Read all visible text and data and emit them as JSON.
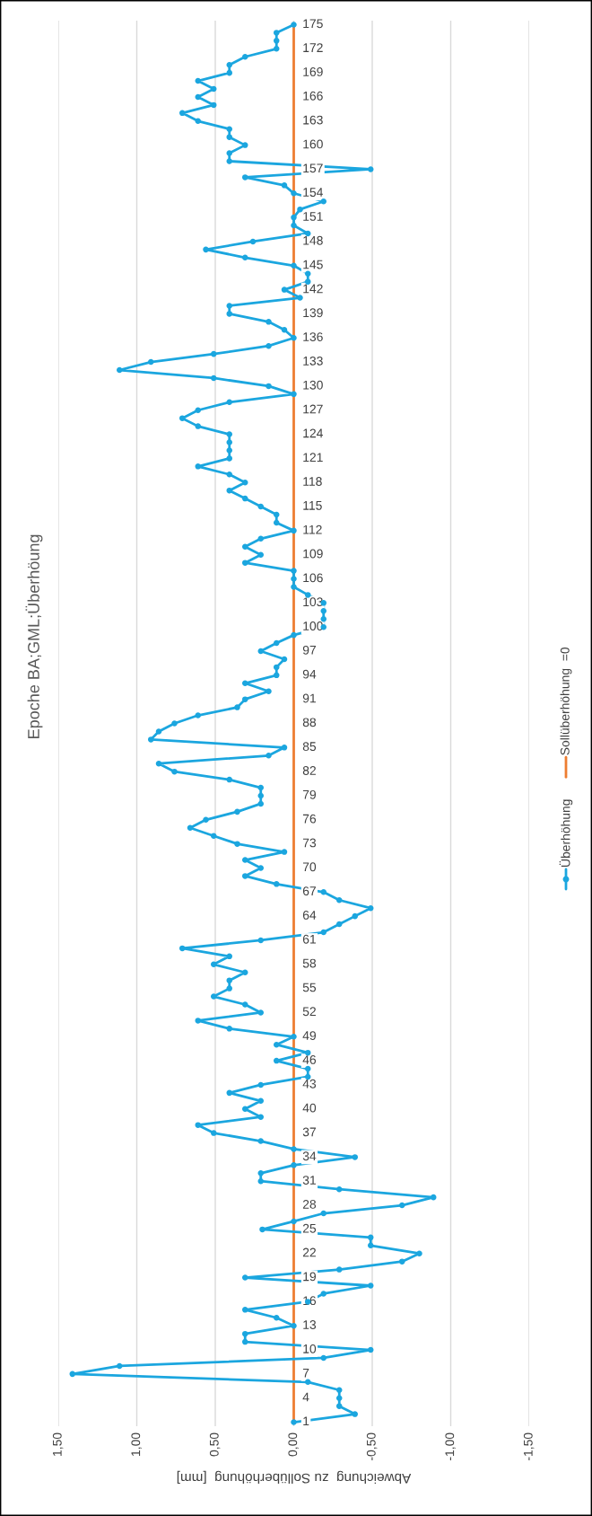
{
  "chart_data": {
    "type": "line",
    "orientation": "horizontal",
    "title": "Epoche BA;GML;Überhöung",
    "xlabel": "Abweichung  zu Sollüberhöhung  [mm]",
    "categories": [
      "175",
      null,
      null,
      "172",
      null,
      null,
      "169",
      null,
      null,
      "166",
      null,
      null,
      "163",
      null,
      null,
      "160",
      null,
      null,
      "157",
      null,
      null,
      "154",
      null,
      null,
      "151",
      null,
      null,
      "148",
      null,
      null,
      "145",
      null,
      null,
      "142",
      null,
      null,
      "139",
      null,
      null,
      "136",
      null,
      null,
      "133",
      null,
      null,
      "130",
      null,
      null,
      "127",
      null,
      null,
      "124",
      null,
      null,
      "121",
      null,
      null,
      "118",
      null,
      null,
      "115",
      null,
      null,
      "112",
      null,
      null,
      "109",
      null,
      null,
      "106",
      null,
      null,
      "103",
      null,
      null,
      "100",
      null,
      null,
      "97",
      null,
      null,
      "94",
      null,
      null,
      "91",
      null,
      null,
      "88",
      null,
      null,
      "85",
      null,
      null,
      "82",
      null,
      null,
      "79",
      null,
      null,
      "76",
      null,
      null,
      "73",
      null,
      null,
      "70",
      null,
      null,
      "67",
      null,
      null,
      "64",
      null,
      null,
      "61",
      null,
      null,
      "58",
      null,
      null,
      "55",
      null,
      null,
      "52",
      null,
      null,
      "49",
      null,
      null,
      "46",
      null,
      null,
      "43",
      null,
      null,
      "40",
      null,
      null,
      "37",
      null,
      null,
      "34",
      null,
      null,
      "31",
      null,
      null,
      "28",
      null,
      null,
      "25",
      null,
      null,
      "22",
      null,
      null,
      "19",
      null,
      null,
      "16",
      null,
      null,
      "13",
      null,
      null,
      "10",
      null,
      null,
      "7",
      null,
      null,
      "4",
      null,
      null,
      "1"
    ],
    "series": [
      {
        "name": "Überhöhung",
        "color": "#1ba6df",
        "marker": "circle",
        "values": [
          0,
          0.11,
          0.11,
          0.11,
          0.31,
          0.41,
          0.41,
          0.61,
          0.51,
          0.61,
          0.51,
          0.71,
          0.61,
          0.41,
          0.41,
          0.31,
          0.41,
          0.41,
          -0.49,
          0.31,
          0.06,
          0,
          -0.19,
          -0.04,
          0,
          0,
          -0.09,
          0.26,
          0.56,
          0.31,
          0,
          -0.09,
          -0.09,
          0.06,
          -0.04,
          0.41,
          0.41,
          0.16,
          0.06,
          0,
          0.16,
          0.51,
          0.91,
          1.11,
          0.51,
          0.16,
          0,
          0.41,
          0.61,
          0.71,
          0.61,
          0.41,
          0.41,
          0.41,
          0.41,
          0.61,
          0.41,
          0.31,
          0.41,
          0.31,
          0.21,
          0.11,
          0.11,
          0,
          0.21,
          0.31,
          0.21,
          0.31,
          0,
          0,
          0,
          -0.09,
          -0.19,
          -0.19,
          -0.19,
          -0.19,
          0,
          0.11,
          0.21,
          0.06,
          0.11,
          0.11,
          0.31,
          0.16,
          0.31,
          0.36,
          0.61,
          0.76,
          0.86,
          0.91,
          0.06,
          0.16,
          0.86,
          0.76,
          0.41,
          0.21,
          0.21,
          0.21,
          0.36,
          0.56,
          0.66,
          0.51,
          0.36,
          0.06,
          0.31,
          0.21,
          0.31,
          0.11,
          -0.19,
          -0.29,
          -0.49,
          -0.39,
          -0.29,
          -0.19,
          0.21,
          0.71,
          0.41,
          0.51,
          0.31,
          0.41,
          0.41,
          0.51,
          0.31,
          0.21,
          0.61,
          0.41,
          0,
          0.11,
          -0.09,
          0.11,
          -0.09,
          -0.09,
          0.21,
          0.41,
          0.21,
          0.31,
          0.21,
          0.61,
          0.51,
          0.21,
          0,
          -0.39,
          0,
          0.21,
          0.21,
          -0.29,
          -0.89,
          -0.69,
          -0.19,
          0,
          0.2,
          -0.49,
          -0.49,
          -0.8,
          -0.69,
          -0.29,
          0.31,
          -0.49,
          -0.19,
          -0.09,
          0.31,
          0.11,
          0,
          0.31,
          0.31,
          -0.49,
          -0.19,
          1.11,
          1.41,
          -0.09,
          -0.29,
          -0.29,
          -0.29,
          -0.39,
          0
        ]
      },
      {
        "name": "Sollüberhöhung  =0",
        "color": "#ed7d31",
        "marker": "none",
        "values": [
          0,
          0,
          0,
          0,
          0,
          0,
          0,
          0,
          0,
          0,
          0,
          0,
          0,
          0,
          0,
          0,
          0,
          0,
          0,
          0,
          0,
          0,
          0,
          0,
          0,
          0,
          0,
          0,
          0,
          0,
          0,
          0,
          0,
          0,
          0,
          0,
          0,
          0,
          0,
          0,
          0,
          0,
          0,
          0,
          0,
          0,
          0,
          0,
          0,
          0,
          0,
          0,
          0,
          0,
          0,
          0,
          0,
          0,
          0,
          0,
          0,
          0,
          0,
          0,
          0,
          0,
          0,
          0,
          0,
          0,
          0,
          0,
          0,
          0,
          0,
          0,
          0,
          0,
          0,
          0,
          0,
          0,
          0,
          0,
          0,
          0,
          0,
          0,
          0,
          0,
          0,
          0,
          0,
          0,
          0,
          0,
          0,
          0,
          0,
          0,
          0,
          0,
          0,
          0,
          0,
          0,
          0,
          0,
          0,
          0,
          0,
          0,
          0,
          0,
          0,
          0,
          0,
          0,
          0,
          0,
          0,
          0,
          0,
          0,
          0,
          0,
          0,
          0,
          0,
          0,
          0,
          0,
          0,
          0,
          0,
          0,
          0,
          0,
          0,
          0,
          0,
          0,
          0,
          0,
          0,
          0,
          0,
          0,
          0,
          0,
          0,
          0,
          0,
          0,
          0,
          0,
          0,
          0,
          0,
          0,
          0,
          0,
          0,
          0,
          0,
          0,
          0,
          0,
          0,
          0,
          0,
          0,
          0,
          0,
          0
        ]
      }
    ],
    "xlim": [
      1.5,
      -1.5
    ],
    "xticks": [
      {
        "value": 1.5,
        "label": "1,50"
      },
      {
        "value": 1.0,
        "label": "1,00"
      },
      {
        "value": 0.5,
        "label": "0,50"
      },
      {
        "value": 0,
        "label": "0,00"
      },
      {
        "value": -0.5,
        "label": "-0,50"
      },
      {
        "value": -1.0,
        "label": "-1,00"
      },
      {
        "value": -1.5,
        "label": "-1,50"
      }
    ],
    "grid": "x",
    "legend": "right",
    "line_style": "solid"
  }
}
